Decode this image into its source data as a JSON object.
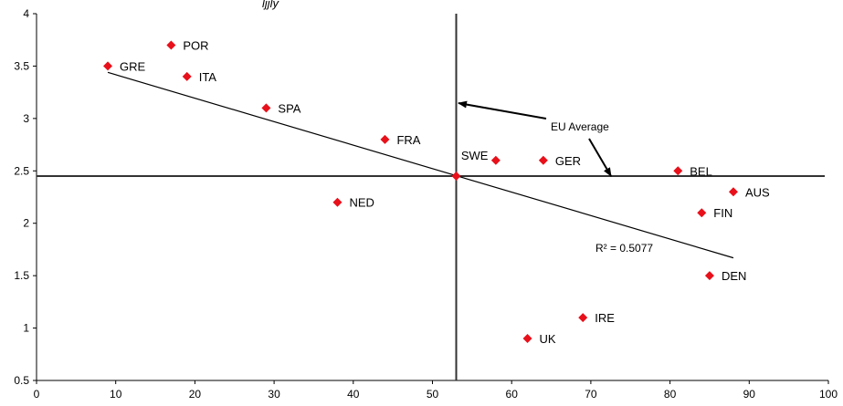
{
  "chart_data": {
    "type": "scatter",
    "title": "",
    "xlabel": "",
    "ylabel": "",
    "xlim": [
      0,
      100
    ],
    "ylim": [
      0.5,
      4
    ],
    "xticks": [
      "0",
      "10",
      "20",
      "30",
      "40",
      "50",
      "60",
      "70",
      "80",
      "90",
      "100"
    ],
    "yticks": [
      "0.5",
      "1",
      "1.5",
      "2",
      "2.5",
      "3",
      "3.5",
      "4"
    ],
    "grid": false,
    "marker_color": "#e8101a",
    "points": [
      {
        "label": "GRE",
        "x": 9,
        "y": 3.5
      },
      {
        "label": "POR",
        "x": 17,
        "y": 3.7
      },
      {
        "label": "ITA",
        "x": 19,
        "y": 3.4
      },
      {
        "label": "SPA",
        "x": 29,
        "y": 3.1
      },
      {
        "label": "FRA",
        "x": 44,
        "y": 2.8
      },
      {
        "label": "NED",
        "x": 38,
        "y": 2.2
      },
      {
        "label": "SWE",
        "x": 58,
        "y": 2.6
      },
      {
        "label": "GER",
        "x": 64,
        "y": 2.6
      },
      {
        "label": "BEL",
        "x": 81,
        "y": 2.5
      },
      {
        "label": "AUS",
        "x": 88,
        "y": 2.3
      },
      {
        "label": "FIN",
        "x": 84,
        "y": 2.1
      },
      {
        "label": "DEN",
        "x": 85,
        "y": 1.5
      },
      {
        "label": "IRE",
        "x": 69,
        "y": 1.1
      },
      {
        "label": "UK",
        "x": 62,
        "y": 0.9
      }
    ],
    "center_point": {
      "x": 53,
      "y": 2.45
    },
    "eu_average": {
      "x": 53,
      "y": 2.45
    },
    "trendline": {
      "x1": 9,
      "y1": 3.44,
      "x2": 88,
      "y2": 1.67
    },
    "annotations": {
      "eu_average_label": "EU Average",
      "r_squared": "R² = 0.5077"
    },
    "partial_top_text": "ljjly"
  }
}
